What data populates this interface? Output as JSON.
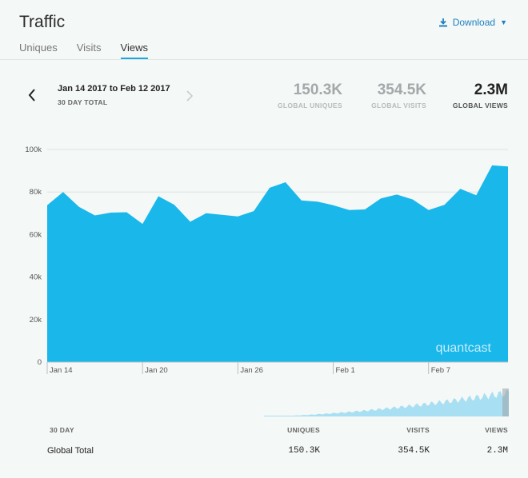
{
  "header": {
    "title": "Traffic",
    "download_label": "Download"
  },
  "tabs": [
    {
      "label": "Uniques",
      "active": false
    },
    {
      "label": "Visits",
      "active": false
    },
    {
      "label": "Views",
      "active": true
    }
  ],
  "range": {
    "label": "Jan 14 2017 to Feb 12 2017",
    "sub": "30 DAY TOTAL"
  },
  "stats": [
    {
      "value": "150.3K",
      "label": "GLOBAL UNIQUES"
    },
    {
      "value": "354.5K",
      "label": "GLOBAL VISITS"
    },
    {
      "value": "2.3M",
      "label": "GLOBAL VIEWS"
    }
  ],
  "watermark": "quantcast",
  "colors": {
    "area": "#1ab7ea",
    "accent": "#1ba8e0",
    "link": "#1e7fc0",
    "overview": "#a9dff2"
  },
  "chart_data": {
    "type": "area",
    "x": [
      "Jan 14",
      "Jan 15",
      "Jan 16",
      "Jan 17",
      "Jan 18",
      "Jan 19",
      "Jan 20",
      "Jan 21",
      "Jan 22",
      "Jan 23",
      "Jan 24",
      "Jan 25",
      "Jan 26",
      "Jan 27",
      "Jan 28",
      "Jan 29",
      "Jan 30",
      "Jan 31",
      "Feb 1",
      "Feb 2",
      "Feb 3",
      "Feb 4",
      "Feb 5",
      "Feb 6",
      "Feb 7",
      "Feb 8",
      "Feb 9",
      "Feb 10",
      "Feb 11",
      "Feb 12"
    ],
    "values": [
      73800,
      80000,
      73000,
      69000,
      70300,
      70500,
      65000,
      78000,
      74000,
      66000,
      70000,
      69300,
      68500,
      71000,
      82000,
      84600,
      76000,
      75500,
      73800,
      71500,
      71800,
      77000,
      78800,
      76500,
      71500,
      74000,
      81500,
      78500,
      92500,
      92000
    ],
    "yticks": [
      0,
      20000,
      40000,
      60000,
      80000,
      100000
    ],
    "ytick_labels": [
      "0",
      "20k",
      "40k",
      "60k",
      "80k",
      "100k"
    ],
    "xtick_labels": [
      "Jan 14",
      "Jan 20",
      "Jan 26",
      "Feb 1",
      "Feb 7"
    ],
    "ylim": [
      0,
      100000
    ],
    "grid": true,
    "xlabel": "",
    "ylabel": ""
  },
  "table": {
    "headers": [
      "30 DAY",
      "UNIQUES",
      "VISITS",
      "VIEWS"
    ],
    "row": {
      "label": "Global Total",
      "uniques": "150.3K",
      "visits": "354.5K",
      "views": "2.3M"
    }
  }
}
